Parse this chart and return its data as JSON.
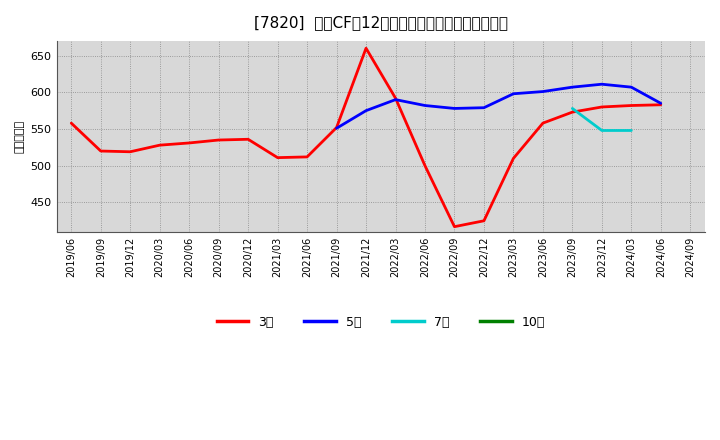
{
  "title": "[7820]  投賄CFの12か月移動合計の標準偏差の推移",
  "ylabel": "（百万円）",
  "ylim": [
    410,
    670
  ],
  "yticks": [
    450,
    500,
    550,
    600,
    650
  ],
  "plot_bg": "#d8d8d8",
  "fig_bg": "#ffffff",
  "grid_color": "#888888",
  "series": {
    "3year": {
      "color": "#ff0000",
      "label": "3年",
      "x": [
        "2019/06",
        "2019/09",
        "2019/12",
        "2020/03",
        "2020/06",
        "2020/09",
        "2020/12",
        "2021/03",
        "2021/06",
        "2021/09",
        "2021/12",
        "2022/03",
        "2022/06",
        "2022/09",
        "2022/12",
        "2023/03",
        "2023/06",
        "2023/09",
        "2023/12",
        "2024/03",
        "2024/06"
      ],
      "y": [
        558,
        520,
        519,
        528,
        531,
        535,
        536,
        511,
        512,
        552,
        660,
        592,
        500,
        417,
        425,
        510,
        558,
        573,
        580,
        582,
        583
      ]
    },
    "5year": {
      "color": "#0000ff",
      "label": "5年",
      "x": [
        "2021/09",
        "2021/12",
        "2022/03",
        "2022/06",
        "2022/09",
        "2022/12",
        "2023/03",
        "2023/06",
        "2023/09",
        "2023/12",
        "2024/03",
        "2024/06"
      ],
      "y": [
        551,
        575,
        590,
        582,
        578,
        579,
        598,
        601,
        607,
        611,
        607,
        585
      ]
    },
    "7year": {
      "color": "#00cccc",
      "label": "7年",
      "x": [
        "2023/09",
        "2023/12",
        "2024/03"
      ],
      "y": [
        578,
        548,
        548
      ]
    },
    "10year": {
      "color": "#008000",
      "label": "10年",
      "x": [],
      "y": []
    }
  },
  "x_tick_labels": [
    "2019/06",
    "2019/09",
    "2019/12",
    "2020/03",
    "2020/06",
    "2020/09",
    "2020/12",
    "2021/03",
    "2021/06",
    "2021/09",
    "2021/12",
    "2022/03",
    "2022/06",
    "2022/09",
    "2022/12",
    "2023/03",
    "2023/06",
    "2023/09",
    "2023/12",
    "2024/03",
    "2024/06",
    "2024/09"
  ],
  "legend_items": [
    {
      "label": "3年",
      "color": "#ff0000"
    },
    {
      "label": "5年",
      "color": "#0000ff"
    },
    {
      "label": "7年",
      "color": "#00cccc"
    },
    {
      "label": "10年",
      "color": "#008000"
    }
  ]
}
